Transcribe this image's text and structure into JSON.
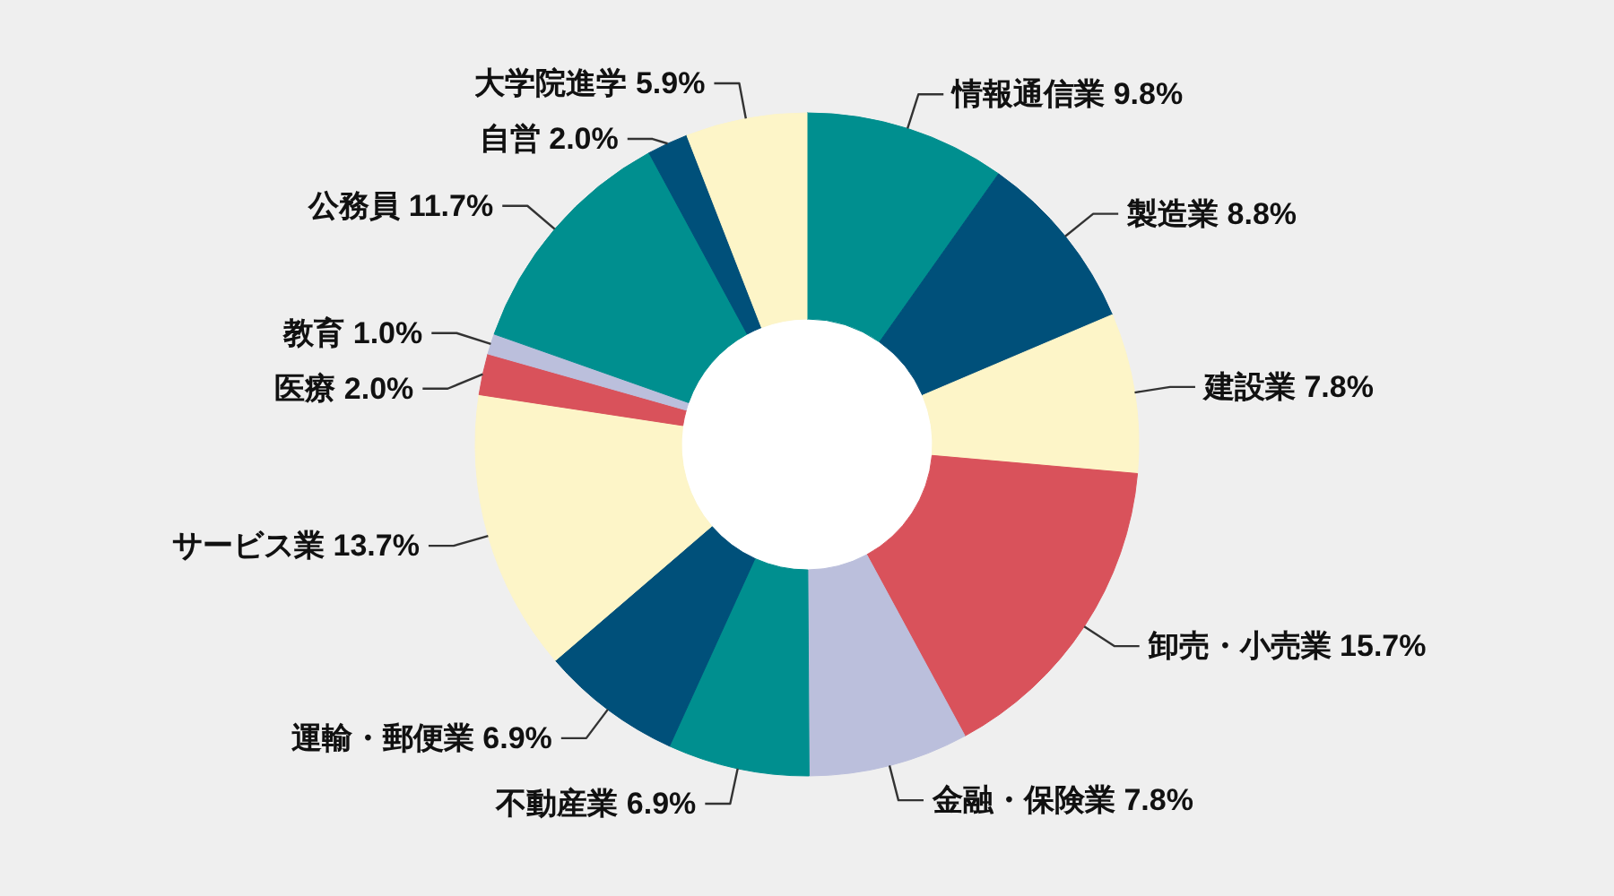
{
  "chart_data": {
    "type": "donut",
    "categories": [
      "情報通信業",
      "製造業",
      "建設業",
      "卸売・小売業",
      "金融・保険業",
      "不動産業",
      "運輸・郵便業",
      "サービス業",
      "医療",
      "教育",
      "公務員",
      "自営",
      "大学院進学"
    ],
    "values": [
      9.8,
      8.8,
      7.8,
      15.7,
      7.8,
      6.9,
      6.9,
      13.7,
      2.0,
      1.0,
      11.7,
      2.0,
      5.9
    ],
    "value_labels": [
      "9.8%",
      "8.8%",
      "7.8%",
      "15.7%",
      "7.8%",
      "6.9%",
      "6.9%",
      "13.7%",
      "2.0%",
      "1.0%",
      "11.7%",
      "2.0%",
      "5.9%"
    ],
    "colors": [
      "#008f8f",
      "#00507a",
      "#fdf5c8",
      "#d9525b",
      "#bbbfdc",
      "#008f8f",
      "#00507a",
      "#fdf5c8",
      "#d9525b",
      "#bbbfdc",
      "#008f8f",
      "#00507a",
      "#fdf5c8"
    ]
  }
}
